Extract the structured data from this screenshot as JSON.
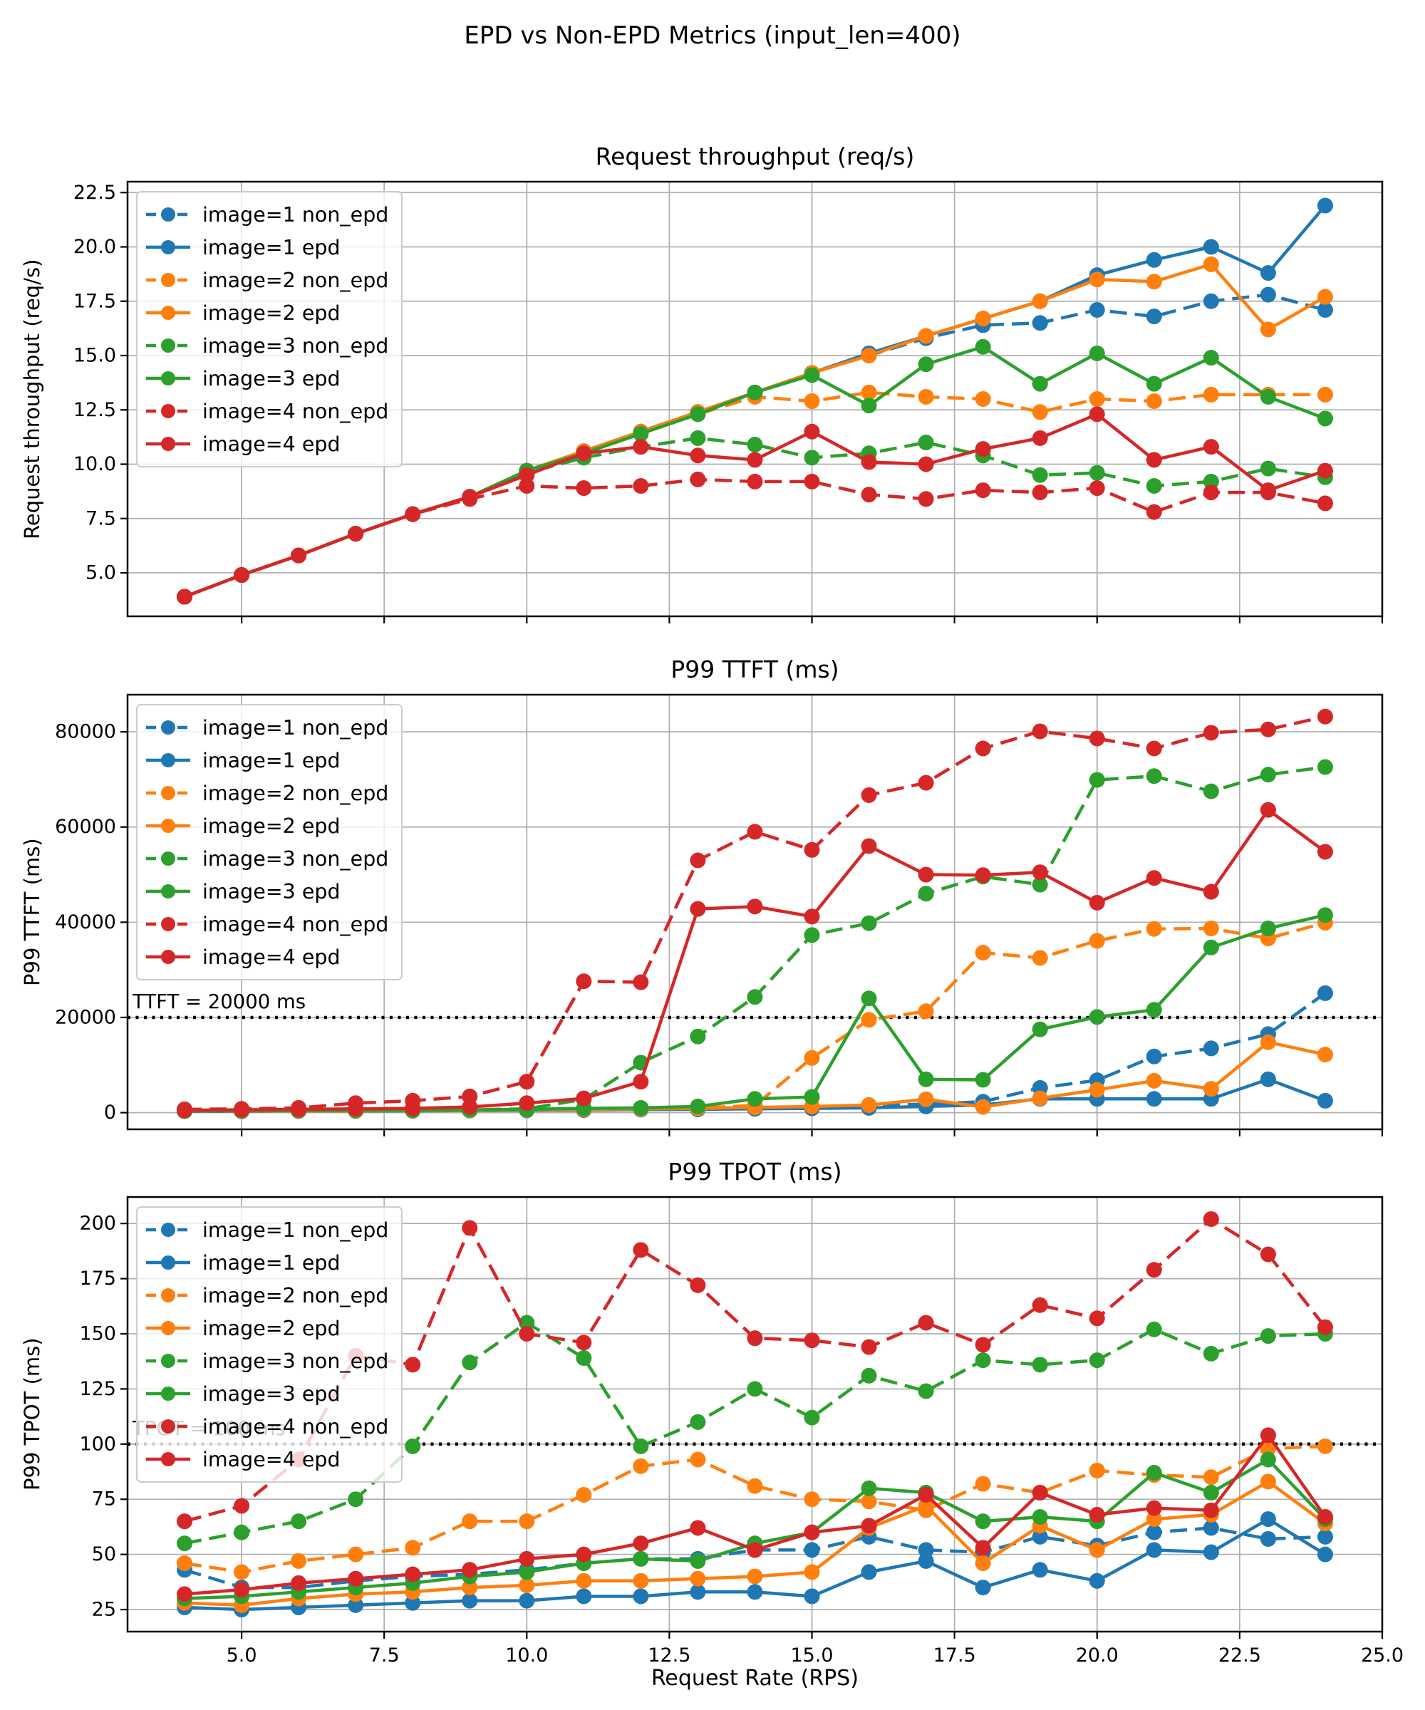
{
  "figure": {
    "title": "EPD vs Non-EPD Metrics (input_len=400)",
    "background": "#ffffff"
  },
  "colors": {
    "blue": "#1f77b4",
    "orange": "#ff7f0e",
    "green": "#2ca02c",
    "red": "#d62728",
    "grid": "#b0b0b0",
    "threshold": "#000000"
  },
  "x_axis": {
    "label": "Request Rate (RPS)",
    "lim": [
      3,
      25
    ],
    "ticks": [
      {
        "v": 5,
        "label": "5.0"
      },
      {
        "v": 7.5,
        "label": "7.5"
      },
      {
        "v": 10,
        "label": "10.0"
      },
      {
        "v": 12.5,
        "label": "12.5"
      },
      {
        "v": 15,
        "label": "15.0"
      },
      {
        "v": 17.5,
        "label": "17.5"
      },
      {
        "v": 20,
        "label": "20.0"
      },
      {
        "v": 22.5,
        "label": "22.5"
      },
      {
        "v": 25,
        "label": "25.0"
      }
    ]
  },
  "chart_data": [
    {
      "type": "line",
      "title": "Request throughput (req/s)",
      "ylabel": "Request throughput (req/s)",
      "grid": true,
      "legend_position": "upper left",
      "ylim": [
        3,
        23
      ],
      "yticks": [
        {
          "v": 5,
          "label": "5.0"
        },
        {
          "v": 7.5,
          "label": "7.5"
        },
        {
          "v": 10,
          "label": "10.0"
        },
        {
          "v": 12.5,
          "label": "12.5"
        },
        {
          "v": 15,
          "label": "15.0"
        },
        {
          "v": 17.5,
          "label": "17.5"
        },
        {
          "v": 20,
          "label": "20.0"
        },
        {
          "v": 22.5,
          "label": "22.5"
        }
      ],
      "x": [
        4,
        5,
        6,
        7,
        8,
        9,
        10,
        11,
        12,
        13,
        14,
        15,
        16,
        17,
        18,
        19,
        20,
        21,
        22,
        23,
        24
      ],
      "series": [
        {
          "label": "image=1 non_epd",
          "color": "#1f77b4",
          "dashed": true,
          "values": [
            3.9,
            4.9,
            5.8,
            6.8,
            7.7,
            8.5,
            9.6,
            10.6,
            11.5,
            12.4,
            13.3,
            14.2,
            15.0,
            15.8,
            16.4,
            16.5,
            17.1,
            16.8,
            17.5,
            17.8,
            17.1
          ]
        },
        {
          "label": "image=1 epd",
          "color": "#1f77b4",
          "dashed": false,
          "values": [
            3.9,
            4.9,
            5.8,
            6.8,
            7.7,
            8.5,
            9.7,
            10.6,
            11.5,
            12.4,
            13.3,
            14.2,
            15.1,
            15.9,
            16.7,
            17.5,
            18.7,
            19.4,
            20.0,
            18.8,
            21.9
          ]
        },
        {
          "label": "image=2 non_epd",
          "color": "#ff7f0e",
          "dashed": true,
          "values": [
            3.9,
            4.9,
            5.8,
            6.8,
            7.7,
            8.5,
            9.6,
            10.5,
            11.4,
            12.3,
            13.1,
            12.9,
            13.3,
            13.1,
            13.0,
            12.4,
            13.0,
            12.9,
            13.2,
            13.2,
            13.2
          ]
        },
        {
          "label": "image=2 epd",
          "color": "#ff7f0e",
          "dashed": false,
          "values": [
            3.9,
            4.9,
            5.8,
            6.8,
            7.7,
            8.5,
            9.7,
            10.6,
            11.5,
            12.4,
            13.3,
            14.2,
            15.0,
            15.9,
            16.7,
            17.5,
            18.5,
            18.4,
            19.2,
            16.2,
            17.7
          ]
        },
        {
          "label": "image=3 non_epd",
          "color": "#2ca02c",
          "dashed": true,
          "values": [
            3.9,
            4.9,
            5.8,
            6.8,
            7.7,
            8.5,
            9.6,
            10.3,
            10.8,
            11.2,
            10.9,
            10.3,
            10.5,
            11.0,
            10.4,
            9.5,
            9.6,
            9.0,
            9.2,
            9.8,
            9.4
          ]
        },
        {
          "label": "image=3 epd",
          "color": "#2ca02c",
          "dashed": false,
          "values": [
            3.9,
            4.9,
            5.8,
            6.8,
            7.7,
            8.5,
            9.7,
            10.5,
            11.4,
            12.3,
            13.3,
            14.1,
            12.7,
            14.6,
            15.4,
            13.7,
            15.1,
            13.7,
            14.9,
            13.1,
            12.1
          ]
        },
        {
          "label": "image=4 non_epd",
          "color": "#d62728",
          "dashed": true,
          "values": [
            3.9,
            4.9,
            5.8,
            6.8,
            7.7,
            8.4,
            9.0,
            8.9,
            9.0,
            9.3,
            9.2,
            9.2,
            8.6,
            8.4,
            8.8,
            8.7,
            8.9,
            7.8,
            8.7,
            8.7,
            8.2
          ]
        },
        {
          "label": "image=4 epd",
          "color": "#d62728",
          "dashed": false,
          "values": [
            3.9,
            4.9,
            5.8,
            6.8,
            7.7,
            8.5,
            9.5,
            10.5,
            10.8,
            10.4,
            10.2,
            11.5,
            10.1,
            10.0,
            10.7,
            11.2,
            12.3,
            10.2,
            10.8,
            8.8,
            9.7
          ]
        }
      ]
    },
    {
      "type": "line",
      "title": "P99 TTFT (ms)",
      "ylabel": "P99 TTFT (ms)",
      "grid": true,
      "legend_position": "upper left",
      "ylim": [
        -3500,
        87800
      ],
      "threshold": {
        "value": 20000,
        "label": "TTFT = 20000 ms"
      },
      "yticks": [
        {
          "v": 0,
          "label": "0"
        },
        {
          "v": 20000,
          "label": "20000"
        },
        {
          "v": 40000,
          "label": "40000"
        },
        {
          "v": 60000,
          "label": "60000"
        },
        {
          "v": 80000,
          "label": "80000"
        }
      ],
      "x": [
        4,
        5,
        6,
        7,
        8,
        9,
        10,
        11,
        12,
        13,
        14,
        15,
        16,
        17,
        18,
        19,
        20,
        21,
        22,
        23,
        24
      ],
      "series": [
        {
          "label": "image=1 non_epd",
          "color": "#1f77b4",
          "dashed": true,
          "values": [
            300,
            300,
            350,
            400,
            400,
            450,
            500,
            600,
            700,
            800,
            900,
            1000,
            1500,
            1800,
            2300,
            5200,
            6800,
            11800,
            13500,
            16500,
            25100
          ]
        },
        {
          "label": "image=1 epd",
          "color": "#1f77b4",
          "dashed": false,
          "values": [
            300,
            300,
            350,
            350,
            400,
            450,
            500,
            550,
            650,
            700,
            800,
            900,
            1000,
            1300,
            1600,
            2900,
            2900,
            2900,
            2900,
            7000,
            2500
          ]
        },
        {
          "label": "image=2 non_epd",
          "color": "#ff7f0e",
          "dashed": true,
          "values": [
            350,
            350,
            400,
            450,
            500,
            550,
            650,
            800,
            900,
            1000,
            1500,
            11500,
            19500,
            21300,
            33600,
            32500,
            36100,
            38600,
            38700,
            36600,
            39900
          ]
        },
        {
          "label": "image=2 epd",
          "color": "#ff7f0e",
          "dashed": false,
          "values": [
            350,
            350,
            400,
            400,
            450,
            500,
            600,
            700,
            800,
            900,
            1100,
            1300,
            1600,
            2800,
            1200,
            3000,
            4800,
            6700,
            5000,
            14800,
            12200
          ]
        },
        {
          "label": "image=3 non_epd",
          "color": "#2ca02c",
          "dashed": true,
          "values": [
            400,
            400,
            450,
            500,
            550,
            600,
            800,
            2800,
            10500,
            16000,
            24300,
            37300,
            39800,
            46000,
            49600,
            47900,
            69900,
            70700,
            67500,
            71000,
            72600
          ]
        },
        {
          "label": "image=3 epd",
          "color": "#2ca02c",
          "dashed": false,
          "values": [
            400,
            400,
            450,
            500,
            550,
            600,
            700,
            900,
            1000,
            1300,
            2900,
            3300,
            24000,
            7000,
            6900,
            17500,
            20100,
            21600,
            34700,
            38700,
            41500
          ]
        },
        {
          "label": "image=4 non_epd",
          "color": "#d62728",
          "dashed": true,
          "values": [
            700,
            800,
            1000,
            2000,
            2500,
            3400,
            6500,
            27600,
            27400,
            53000,
            59000,
            55200,
            66700,
            69300,
            76500,
            80100,
            78600,
            76500,
            79800,
            80500,
            83200
          ]
        },
        {
          "label": "image=4 epd",
          "color": "#d62728",
          "dashed": false,
          "values": [
            500,
            600,
            700,
            800,
            900,
            1200,
            2000,
            3000,
            6500,
            42800,
            43300,
            41200,
            56000,
            50000,
            49900,
            50500,
            44100,
            49300,
            46400,
            63600,
            54800
          ]
        }
      ]
    },
    {
      "type": "line",
      "title": "P99 TPOT (ms)",
      "ylabel": "P99 TPOT (ms)",
      "grid": true,
      "legend_position": "upper left",
      "ylim": [
        15,
        212
      ],
      "threshold": {
        "value": 100,
        "label": "TPOT = 100 ms"
      },
      "yticks": [
        {
          "v": 25,
          "label": "25"
        },
        {
          "v": 50,
          "label": "50"
        },
        {
          "v": 75,
          "label": "75"
        },
        {
          "v": 100,
          "label": "100"
        },
        {
          "v": 125,
          "label": "125"
        },
        {
          "v": 150,
          "label": "150"
        },
        {
          "v": 175,
          "label": "175"
        },
        {
          "v": 200,
          "label": "200"
        }
      ],
      "x": [
        4,
        5,
        6,
        7,
        8,
        9,
        10,
        11,
        12,
        13,
        14,
        15,
        16,
        17,
        18,
        19,
        20,
        21,
        22,
        23,
        24
      ],
      "series": [
        {
          "label": "image=1 non_epd",
          "color": "#1f77b4",
          "dashed": true,
          "values": [
            43,
            35,
            35,
            38,
            40,
            41,
            43,
            46,
            48,
            48,
            52,
            52,
            58,
            52,
            51,
            58,
            54,
            60,
            62,
            57,
            58
          ]
        },
        {
          "label": "image=1 epd",
          "color": "#1f77b4",
          "dashed": false,
          "values": [
            26,
            25,
            26,
            27,
            28,
            29,
            29,
            31,
            31,
            33,
            33,
            31,
            42,
            47,
            35,
            43,
            38,
            52,
            51,
            66,
            50
          ]
        },
        {
          "label": "image=2 non_epd",
          "color": "#ff7f0e",
          "dashed": true,
          "values": [
            46,
            42,
            47,
            50,
            53,
            65,
            65,
            77,
            90,
            93,
            81,
            75,
            74,
            70,
            82,
            78,
            88,
            86,
            85,
            98,
            99
          ]
        },
        {
          "label": "image=2 epd",
          "color": "#ff7f0e",
          "dashed": false,
          "values": [
            28,
            27,
            30,
            32,
            33,
            35,
            36,
            38,
            38,
            39,
            40,
            42,
            62,
            72,
            46,
            63,
            52,
            66,
            68,
            83,
            64
          ]
        },
        {
          "label": "image=3 non_epd",
          "color": "#2ca02c",
          "dashed": true,
          "values": [
            55,
            60,
            65,
            75,
            99,
            137,
            155,
            139,
            99,
            110,
            125,
            112,
            131,
            124,
            138,
            136,
            138,
            152,
            141,
            149,
            150
          ]
        },
        {
          "label": "image=3 epd",
          "color": "#2ca02c",
          "dashed": false,
          "values": [
            30,
            31,
            33,
            35,
            37,
            40,
            42,
            46,
            48,
            47,
            55,
            60,
            80,
            78,
            65,
            67,
            65,
            87,
            78,
            93,
            66
          ]
        },
        {
          "label": "image=4 non_epd",
          "color": "#d62728",
          "dashed": true,
          "values": [
            65,
            72,
            93,
            140,
            136,
            198,
            150,
            146,
            188,
            172,
            148,
            147,
            144,
            155,
            145,
            163,
            157,
            179,
            202,
            186,
            153
          ]
        },
        {
          "label": "image=4 epd",
          "color": "#d62728",
          "dashed": false,
          "values": [
            32,
            34,
            37,
            39,
            41,
            43,
            48,
            50,
            55,
            62,
            52,
            60,
            63,
            77,
            53,
            78,
            68,
            71,
            70,
            104,
            67
          ]
        }
      ]
    }
  ]
}
